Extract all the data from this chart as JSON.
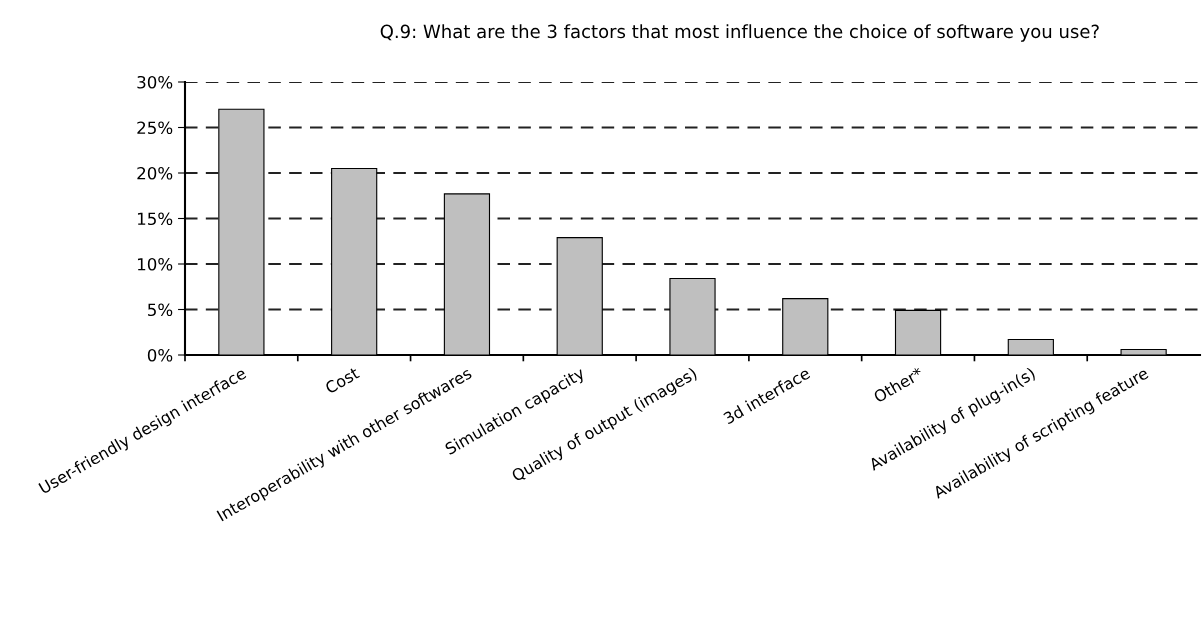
{
  "chart_data": {
    "type": "bar",
    "title": "Q.9: What are the 3 factors that most influence the choice of software you use?",
    "categories": [
      "User-friendly design interface",
      "Cost",
      "Interoperability with other softwares",
      "Simulation capacity",
      "Quality of output (images)",
      "3d interface",
      "Other*",
      "Availability of plug-in(s)",
      "Availability of scripting feature"
    ],
    "values": [
      27.0,
      20.5,
      17.7,
      12.9,
      8.4,
      6.2,
      4.9,
      1.7,
      0.6
    ],
    "color": "#bfbfbf",
    "ylim": [
      0,
      30
    ],
    "yticks": [
      {
        "value": 0,
        "label": "0%"
      },
      {
        "value": 5,
        "label": "5%"
      },
      {
        "value": 10,
        "label": "10%"
      },
      {
        "value": 15,
        "label": "15%"
      },
      {
        "value": 20,
        "label": "20%"
      },
      {
        "value": 25,
        "label": "25%"
      },
      {
        "value": 30,
        "label": "30%"
      }
    ],
    "grid": "y",
    "line_style": "dashed"
  }
}
